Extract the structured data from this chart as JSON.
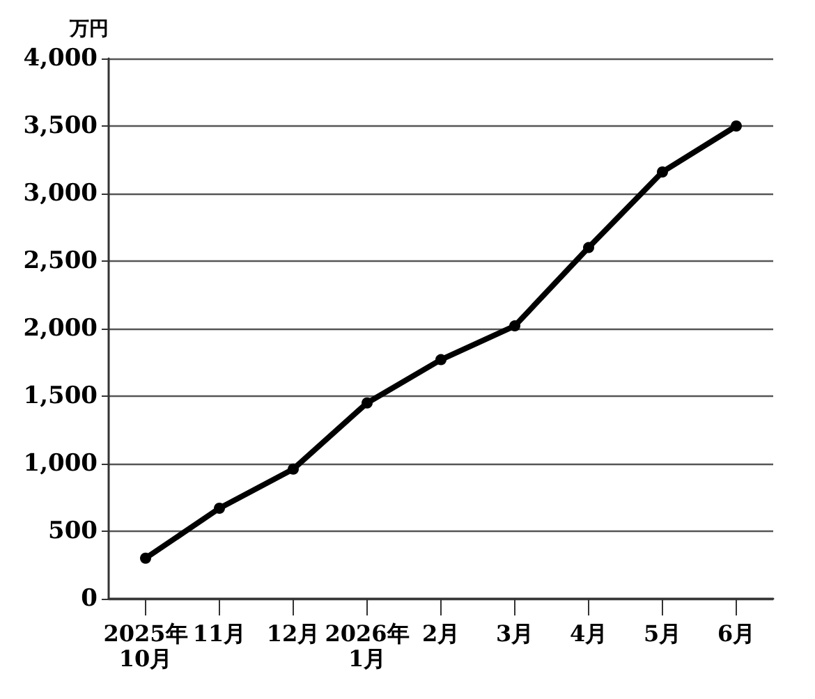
{
  "chart_data": {
    "type": "line",
    "ylabel": "万円",
    "categories": [
      "2025年\n10月",
      "11月",
      "12月",
      "2026年\n1月",
      "2月",
      "3月",
      "4月",
      "5月",
      "6月"
    ],
    "series": [
      {
        "color": "#000000",
        "values": [
          300,
          670,
          960,
          1450,
          1770,
          2020,
          2600,
          3160,
          3500
        ]
      }
    ],
    "ylim": [
      0,
      4000
    ],
    "yticks": [
      0,
      500,
      {
        "value": 1000,
        "label": "1,000"
      },
      {
        "value": 1500,
        "label": "1,500"
      },
      {
        "value": 2000,
        "label": "2,000"
      },
      {
        "value": 2500,
        "label": "2,500"
      },
      {
        "value": 3000,
        "label": "3,000"
      },
      {
        "value": 3500,
        "label": "3,500"
      },
      {
        "value": 4000,
        "label": "4,000"
      }
    ],
    "grid": "y",
    "marker": "circle",
    "line_style": "solid"
  }
}
